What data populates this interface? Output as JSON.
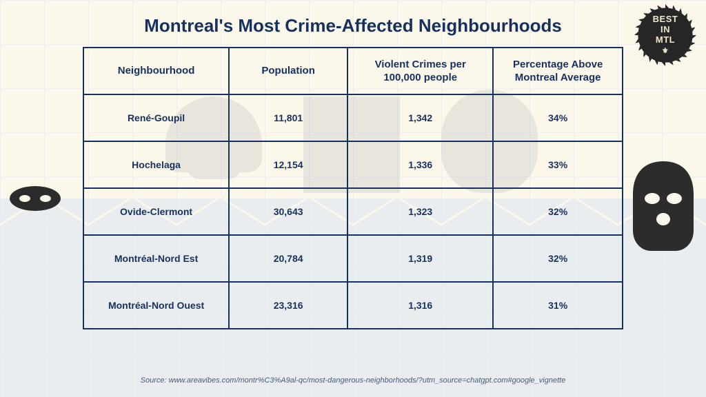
{
  "title": "Montreal's Most Crime-Affected Neighbourhoods",
  "badge": {
    "line1": "BEST",
    "line2": "IN",
    "line3": "MTL",
    "symbol": "⚜"
  },
  "colors": {
    "navy": "#17315f",
    "cream": "#fbf7ea",
    "pale_gray": "#e9edf0",
    "grid_line": "#e6e9ee",
    "badge_bg": "#262626",
    "badge_text": "#f0e6c8",
    "icon_dark": "#2c2c2c",
    "source_text": "#4a5a78"
  },
  "table": {
    "columns": [
      "Neighbourhood",
      "Population",
      "Violent Crimes per 100,000 people",
      "Percentage Above Montreal Average"
    ],
    "rows": [
      [
        "René-Goupil",
        "11,801",
        "1,342",
        "34%"
      ],
      [
        "Hochelaga",
        "12,154",
        "1,336",
        "33%"
      ],
      [
        "Ovide-Clermont",
        "30,643",
        "1,323",
        "32%"
      ],
      [
        "Montréal-Nord Est",
        "20,784",
        "1,319",
        "32%"
      ],
      [
        "Montréal-Nord Ouest",
        "23,316",
        "1,316",
        "31%"
      ]
    ],
    "border_color": "#17315f",
    "text_color": "#17315f",
    "cell_bg": "transparent"
  },
  "source": "Source: www.areavibes.com/montr%C3%A9al-qc/most-dangerous-neighborhoods/?utm_source=chatgpt.com#google_vignette"
}
